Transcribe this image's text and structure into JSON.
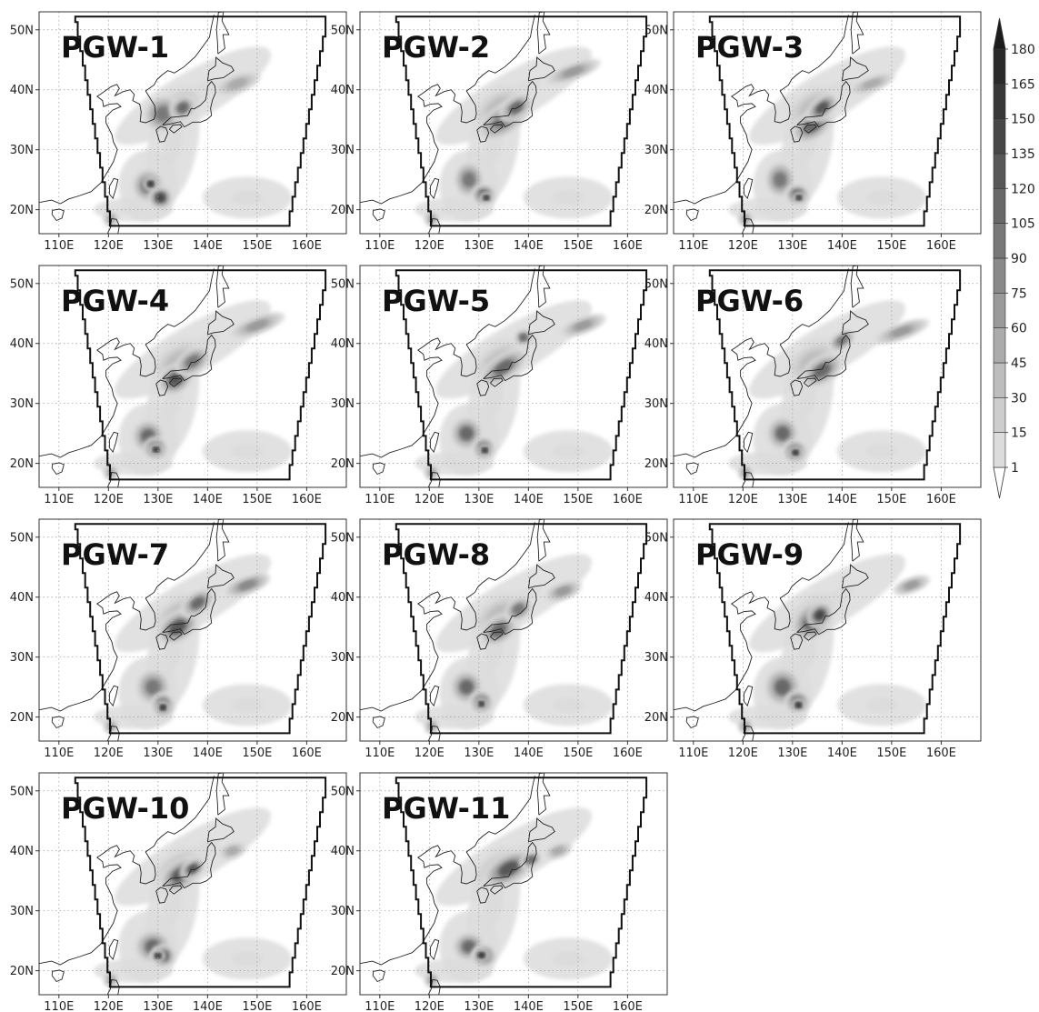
{
  "panels": [
    {
      "title": "PGW-1"
    },
    {
      "title": "PGW-2"
    },
    {
      "title": "PGW-3"
    },
    {
      "title": "PGW-4"
    },
    {
      "title": "PGW-5"
    },
    {
      "title": "PGW-6"
    },
    {
      "title": "PGW-7"
    },
    {
      "title": "PGW-8"
    },
    {
      "title": "PGW-9"
    },
    {
      "title": "PGW-10"
    },
    {
      "title": "PGW-11"
    }
  ],
  "axes": {
    "lon_ticks": [
      "110E",
      "120E",
      "130E",
      "140E",
      "150E",
      "160E"
    ],
    "lat_ticks": [
      "20N",
      "30N",
      "40N",
      "50N"
    ],
    "lon_range": [
      106,
      168
    ],
    "lat_range": [
      16,
      53
    ]
  },
  "colorbar": {
    "levels": [
      "1",
      "15",
      "30",
      "45",
      "60",
      "75",
      "90",
      "105",
      "120",
      "135",
      "150",
      "165",
      "180"
    ],
    "colors": [
      "#ffffff",
      "#dcdcdc",
      "#cdcdcd",
      "#bdbdbd",
      "#ababab",
      "#9a9a9a",
      "#898989",
      "#787878",
      "#686868",
      "#575757",
      "#474747",
      "#383838",
      "#2a2a2a",
      "#1c1c1c"
    ]
  }
}
